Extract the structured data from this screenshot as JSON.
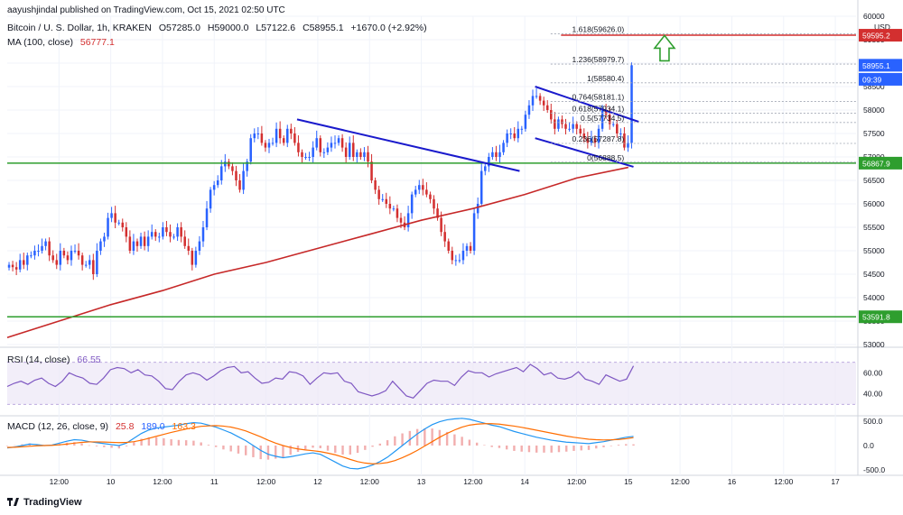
{
  "header": {
    "published": "aayushjindal published on TradingView.com, Oct 15, 2021 02:50 UTC",
    "symbol": "Bitcoin / U. S. Dollar, 1h, KRAKEN",
    "open": "O57285.0",
    "high": "H59000.0",
    "low": "L57122.6",
    "close": "C58955.1",
    "change": "+1670.0 (+2.92%)",
    "ma_label": "MA (100, close)",
    "ma_value": "56777.1",
    "rsi_label": "RSI (14, close)",
    "rsi_value": "66.55",
    "macd_label": "MACD (12, 26, close, 9)",
    "macd_hist": "25.8",
    "macd_line": "189.0",
    "macd_signal": "163.3",
    "footer": "TradingView"
  },
  "colors": {
    "up": "#2962ff",
    "down": "#d32f2f",
    "ma": "#c62828",
    "trend": "#1a1acc",
    "support": "#2e9e2e",
    "rsi": "#7e57c2",
    "macd": "#2196f3",
    "signal": "#ff6d00",
    "arrow": "#2e9e2e"
  },
  "chart_data": {
    "type": "candlestick",
    "price_axis": {
      "min": 53000,
      "max": 60000,
      "unit": "USD",
      "ticks": [
        53000,
        53500,
        54000,
        54500,
        55000,
        55500,
        56000,
        56500,
        57000,
        57500,
        58000,
        58500,
        59000,
        59500,
        60000
      ]
    },
    "time_axis": {
      "ticks": [
        {
          "label": "12:00",
          "t": 0.5
        },
        {
          "label": "10",
          "t": 1
        },
        {
          "label": "12:00",
          "t": 1.5
        },
        {
          "label": "11",
          "t": 2
        },
        {
          "label": "12:00",
          "t": 2.5
        },
        {
          "label": "12",
          "t": 3
        },
        {
          "label": "12:00",
          "t": 3.5
        },
        {
          "label": "13",
          "t": 4
        },
        {
          "label": "12:00",
          "t": 4.5
        },
        {
          "label": "14",
          "t": 5
        },
        {
          "label": "12:00",
          "t": 5.5
        },
        {
          "label": "15",
          "t": 6
        },
        {
          "label": "12:00",
          "t": 6.5
        },
        {
          "label": "16",
          "t": 7
        },
        {
          "label": "12:00",
          "t": 7.5
        },
        {
          "label": "17",
          "t": 8
        }
      ]
    },
    "candles_close": [
      54700,
      54650,
      54600,
      54800,
      54700,
      54900,
      54900,
      55000,
      55000,
      55100,
      55200,
      54900,
      54800,
      54700,
      55000,
      54900,
      54800,
      55000,
      55000,
      54900,
      54700,
      54700,
      54800,
      54500,
      55000,
      55200,
      55300,
      55700,
      55800,
      55600,
      55600,
      55500,
      55300,
      55000,
      55200,
      55100,
      55300,
      55100,
      55300,
      55400,
      55300,
      55300,
      55500,
      55400,
      55300,
      55300,
      55500,
      55300,
      55100,
      55000,
      54700,
      55000,
      55200,
      55500,
      55900,
      56300,
      56400,
      56500,
      56800,
      56900,
      56800,
      56700,
      56500,
      56300,
      56700,
      56900,
      57400,
      57500,
      57500,
      57300,
      57200,
      57300,
      57300,
      57600,
      57400,
      57300,
      57600,
      57500,
      57300,
      57100,
      57000,
      57000,
      57000,
      57200,
      57400,
      57100,
      57100,
      57200,
      57300,
      57300,
      57400,
      57200,
      57000,
      57300,
      57000,
      57100,
      57000,
      57100,
      56900,
      56500,
      56300,
      56100,
      56100,
      56000,
      55900,
      55900,
      55700,
      55600,
      55500,
      55800,
      56200,
      56300,
      56400,
      56300,
      56200,
      56100,
      55900,
      55700,
      55400,
      55200,
      55000,
      54800,
      54800,
      54800,
      55000,
      55100,
      55000,
      55800,
      56000,
      56700,
      56800,
      57000,
      57100,
      57000,
      57100,
      57300,
      57500,
      57500,
      57400,
      57600,
      57600,
      57900,
      58100,
      58300,
      58300,
      58200,
      58100,
      58000,
      57800,
      57600,
      57800,
      57700,
      57600,
      57600,
      57700,
      57600,
      57500,
      57400,
      57300,
      57400,
      57300,
      57600,
      58000,
      57900,
      57700,
      57700,
      57500,
      57500,
      57200,
      57300,
      58955
    ],
    "ma100": [
      {
        "t": 0.0,
        "v": 53150
      },
      {
        "t": 0.5,
        "v": 53500
      },
      {
        "t": 1.0,
        "v": 53850
      },
      {
        "t": 1.5,
        "v": 54150
      },
      {
        "t": 2.0,
        "v": 54500
      },
      {
        "t": 2.5,
        "v": 54750
      },
      {
        "t": 3.0,
        "v": 55050
      },
      {
        "t": 3.5,
        "v": 55350
      },
      {
        "t": 4.0,
        "v": 55650
      },
      {
        "t": 4.5,
        "v": 55900
      },
      {
        "t": 5.0,
        "v": 56200
      },
      {
        "t": 5.5,
        "v": 56550
      },
      {
        "t": 6.0,
        "v": 56777
      }
    ],
    "fibonacci": [
      {
        "label": "1.618",
        "value": "59626.0"
      },
      {
        "label": "1.236",
        "value": "58979.7"
      },
      {
        "label": "1",
        "value": "58580.4"
      },
      {
        "label": "0.764",
        "value": "58181.1"
      },
      {
        "label": "0.618",
        "value": "57934.1"
      },
      {
        "label": "0.5",
        "value": "57734.5"
      },
      {
        "label": "0.236",
        "value": "57287.8"
      },
      {
        "label": "0",
        "value": "56888.5"
      }
    ],
    "price_labels": [
      {
        "value": 59595.2,
        "text": "59595.2",
        "style": "red"
      },
      {
        "value": 58955.1,
        "text": "58955.1",
        "style": "blue"
      },
      {
        "value": 58655,
        "text": "09:39",
        "style": "blue"
      },
      {
        "value": 56867.9,
        "text": "56867.9",
        "style": "green"
      },
      {
        "value": 53591.8,
        "text": "53591.8",
        "style": "green"
      }
    ],
    "horizontal_lines": [
      {
        "value": 59595.2,
        "style": "red"
      },
      {
        "value": 56867.9,
        "style": "green"
      },
      {
        "value": 53591.8,
        "style": "green"
      }
    ],
    "rsi": {
      "axis_ticks": [
        60,
        40
      ],
      "values": [
        47,
        50,
        52,
        49,
        53,
        55,
        50,
        47,
        52,
        60,
        57,
        55,
        50,
        49,
        55,
        63,
        65,
        64,
        60,
        63,
        58,
        57,
        52,
        45,
        44,
        52,
        58,
        60,
        58,
        53,
        57,
        62,
        65,
        66,
        60,
        61,
        55,
        50,
        51,
        55,
        54,
        61,
        60,
        57,
        49,
        55,
        60,
        59,
        60,
        52,
        50,
        42,
        40,
        38,
        40,
        43,
        52,
        45,
        38,
        36,
        43,
        50,
        53,
        52,
        52,
        48,
        56,
        62,
        60,
        60,
        56,
        59,
        61,
        63,
        65,
        61,
        68,
        64,
        58,
        60,
        55,
        54,
        56,
        61,
        54,
        52,
        49,
        58,
        55,
        52,
        54,
        66.55
      ]
    },
    "macd": {
      "axis_ticks": [
        500,
        0,
        -500
      ],
      "macd_line": [
        -50,
        -30,
        0,
        30,
        20,
        0,
        10,
        50,
        90,
        120,
        110,
        80,
        60,
        40,
        20,
        0,
        50,
        150,
        250,
        320,
        360,
        380,
        400,
        420,
        450,
        470,
        460,
        420,
        380,
        320,
        260,
        180,
        100,
        0,
        -100,
        -180,
        -220,
        -250,
        -230,
        -200,
        -170,
        -150,
        -180,
        -260,
        -340,
        -420,
        -470,
        -480,
        -450,
        -400,
        -330,
        -240,
        -120,
        0,
        120,
        240,
        340,
        430,
        490,
        530,
        550,
        560,
        540,
        500,
        460,
        420,
        390,
        340,
        290,
        250,
        210,
        170,
        140,
        110,
        90,
        70,
        60,
        50,
        40,
        60,
        80,
        110,
        140,
        170,
        189
      ],
      "signal_line": [
        -40,
        -35,
        -25,
        -15,
        -5,
        0,
        5,
        15,
        30,
        50,
        65,
        75,
        75,
        72,
        66,
        60,
        65,
        80,
        110,
        150,
        190,
        230,
        270,
        305,
        340,
        370,
        395,
        405,
        410,
        400,
        380,
        345,
        300,
        240,
        180,
        110,
        50,
        0,
        -40,
        -70,
        -90,
        -105,
        -125,
        -155,
        -190,
        -235,
        -285,
        -330,
        -360,
        -375,
        -370,
        -350,
        -310,
        -250,
        -180,
        -100,
        -10,
        80,
        170,
        250,
        320,
        380,
        420,
        440,
        450,
        450,
        440,
        420,
        400,
        375,
        345,
        315,
        285,
        255,
        225,
        195,
        170,
        150,
        130,
        120,
        115,
        118,
        125,
        140,
        163.3
      ]
    },
    "series_names": [
      "Bitcoin / U. S. Dollar, 1h, KRAKEN",
      "MA (100, close)",
      "RSI (14, close)",
      "MACD (12, 26, close, 9)"
    ]
  }
}
